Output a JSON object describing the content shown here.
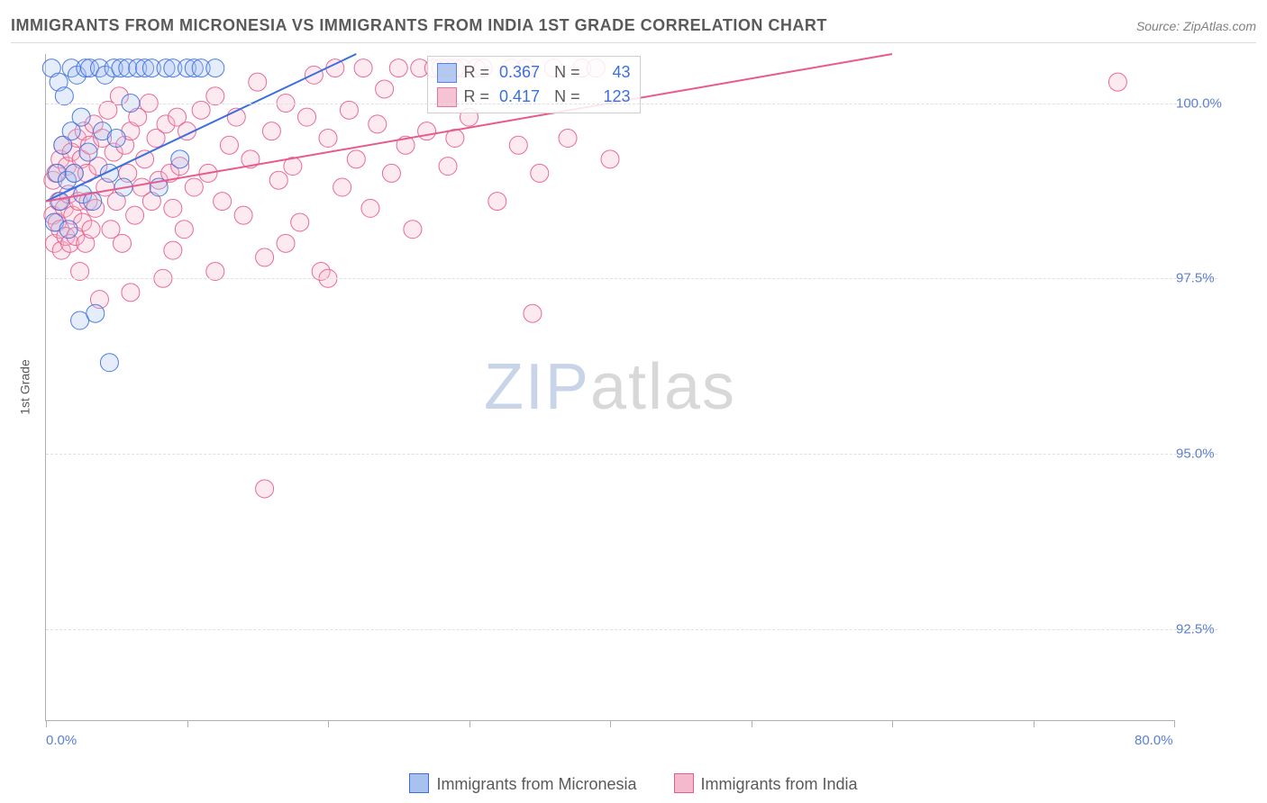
{
  "title": "IMMIGRANTS FROM MICRONESIA VS IMMIGRANTS FROM INDIA 1ST GRADE CORRELATION CHART",
  "source_label": "Source:",
  "source_name": "ZipAtlas.com",
  "ylabel": "1st Grade",
  "watermark_a": "ZIP",
  "watermark_b": "atlas",
  "chart": {
    "type": "scatter",
    "background_color": "#ffffff",
    "grid_color": "#e0e0e0",
    "axis_color": "#b0b0b0",
    "tick_label_color": "#5b7fd1",
    "xlim": [
      0,
      80
    ],
    "ylim": [
      91.2,
      100.7
    ],
    "x_ticks": [
      0,
      10,
      20,
      30,
      40,
      50,
      60,
      70,
      80
    ],
    "x_tick_labels_visible": {
      "0": "0.0%",
      "80": "80.0%"
    },
    "y_ticks": [
      92.5,
      95.0,
      97.5,
      100.0
    ],
    "y_tick_labels": {
      "92.5": "92.5%",
      "95.0": "95.0%",
      "97.5": "97.5%",
      "100.0": "100.0%"
    },
    "marker_radius": 10,
    "marker_fill_opacity": 0.3,
    "marker_stroke_opacity": 0.9,
    "line_width": 2,
    "series": [
      {
        "name": "Immigrants from Micronesia",
        "color": "#3b6fe0",
        "fill": "#a9c1ef",
        "R": "0.367",
        "N": "43",
        "trend": {
          "x0": 0,
          "y0": 98.6,
          "x1": 22,
          "y1": 100.7
        },
        "points": [
          [
            0.4,
            100.5
          ],
          [
            0.6,
            98.3
          ],
          [
            0.8,
            99.0
          ],
          [
            0.9,
            100.3
          ],
          [
            1.0,
            98.6
          ],
          [
            1.2,
            99.4
          ],
          [
            1.3,
            100.1
          ],
          [
            1.5,
            98.9
          ],
          [
            1.6,
            98.2
          ],
          [
            1.8,
            99.6
          ],
          [
            1.8,
            100.5
          ],
          [
            2.0,
            99.0
          ],
          [
            2.2,
            100.4
          ],
          [
            2.4,
            96.9
          ],
          [
            2.5,
            99.8
          ],
          [
            2.6,
            98.7
          ],
          [
            2.8,
            100.5
          ],
          [
            3.0,
            99.3
          ],
          [
            3.1,
            100.5
          ],
          [
            3.3,
            98.6
          ],
          [
            3.5,
            97.0
          ],
          [
            3.8,
            100.5
          ],
          [
            4.0,
            99.6
          ],
          [
            4.2,
            100.4
          ],
          [
            4.5,
            99.0
          ],
          [
            4.5,
            96.3
          ],
          [
            4.8,
            100.5
          ],
          [
            5.0,
            99.5
          ],
          [
            5.3,
            100.5
          ],
          [
            5.5,
            98.8
          ],
          [
            5.8,
            100.5
          ],
          [
            6.0,
            100.0
          ],
          [
            6.5,
            100.5
          ],
          [
            7.0,
            100.5
          ],
          [
            7.5,
            100.5
          ],
          [
            8.0,
            98.8
          ],
          [
            8.5,
            100.5
          ],
          [
            9.0,
            100.5
          ],
          [
            9.5,
            99.2
          ],
          [
            10.0,
            100.5
          ],
          [
            10.5,
            100.5
          ],
          [
            11.0,
            100.5
          ],
          [
            12.0,
            100.5
          ]
        ]
      },
      {
        "name": "Immigrants from India",
        "color": "#e85a8a",
        "fill": "#f5b9cd",
        "R": "0.417",
        "N": "123",
        "trend": {
          "x0": 0,
          "y0": 98.6,
          "x1": 60,
          "y1": 100.7
        },
        "points": [
          [
            0.5,
            98.4
          ],
          [
            0.5,
            98.9
          ],
          [
            0.6,
            98.0
          ],
          [
            0.7,
            99.0
          ],
          [
            0.8,
            98.3
          ],
          [
            0.9,
            98.6
          ],
          [
            1.0,
            99.2
          ],
          [
            1.0,
            98.2
          ],
          [
            1.1,
            97.9
          ],
          [
            1.2,
            99.4
          ],
          [
            1.3,
            98.5
          ],
          [
            1.4,
            98.1
          ],
          [
            1.5,
            99.1
          ],
          [
            1.6,
            98.7
          ],
          [
            1.7,
            98.0
          ],
          [
            1.8,
            99.3
          ],
          [
            1.9,
            98.4
          ],
          [
            2.0,
            99.0
          ],
          [
            2.1,
            98.1
          ],
          [
            2.2,
            99.5
          ],
          [
            2.3,
            98.6
          ],
          [
            2.4,
            97.6
          ],
          [
            2.5,
            99.2
          ],
          [
            2.6,
            98.3
          ],
          [
            2.7,
            99.6
          ],
          [
            2.8,
            98.0
          ],
          [
            2.9,
            99.0
          ],
          [
            3.0,
            98.6
          ],
          [
            3.1,
            99.4
          ],
          [
            3.2,
            98.2
          ],
          [
            3.4,
            99.7
          ],
          [
            3.5,
            98.5
          ],
          [
            3.7,
            99.1
          ],
          [
            3.8,
            97.2
          ],
          [
            4.0,
            99.5
          ],
          [
            4.2,
            98.8
          ],
          [
            4.4,
            99.9
          ],
          [
            4.6,
            98.2
          ],
          [
            4.8,
            99.3
          ],
          [
            5.0,
            98.6
          ],
          [
            5.2,
            100.1
          ],
          [
            5.4,
            98.0
          ],
          [
            5.6,
            99.4
          ],
          [
            5.8,
            99.0
          ],
          [
            6.0,
            99.6
          ],
          [
            6.3,
            98.4
          ],
          [
            6.5,
            99.8
          ],
          [
            6.8,
            98.8
          ],
          [
            7.0,
            99.2
          ],
          [
            7.3,
            100.0
          ],
          [
            7.5,
            98.6
          ],
          [
            7.8,
            99.5
          ],
          [
            8.0,
            98.9
          ],
          [
            8.3,
            97.5
          ],
          [
            8.5,
            99.7
          ],
          [
            8.8,
            99.0
          ],
          [
            9.0,
            98.5
          ],
          [
            9.3,
            99.8
          ],
          [
            9.5,
            99.1
          ],
          [
            9.8,
            98.2
          ],
          [
            10.0,
            99.6
          ],
          [
            10.5,
            98.8
          ],
          [
            11.0,
            99.9
          ],
          [
            11.5,
            99.0
          ],
          [
            12.0,
            100.1
          ],
          [
            12.5,
            98.6
          ],
          [
            13.0,
            99.4
          ],
          [
            13.5,
            99.8
          ],
          [
            14.0,
            98.4
          ],
          [
            14.5,
            99.2
          ],
          [
            15.0,
            100.3
          ],
          [
            15.5,
            97.8
          ],
          [
            16.0,
            99.6
          ],
          [
            16.5,
            98.9
          ],
          [
            17.0,
            100.0
          ],
          [
            17.5,
            99.1
          ],
          [
            18.0,
            98.3
          ],
          [
            18.5,
            99.8
          ],
          [
            19.0,
            100.4
          ],
          [
            19.5,
            97.6
          ],
          [
            20.0,
            99.5
          ],
          [
            20.5,
            100.5
          ],
          [
            21.0,
            98.8
          ],
          [
            21.5,
            99.9
          ],
          [
            22.0,
            99.2
          ],
          [
            22.5,
            100.5
          ],
          [
            23.0,
            98.5
          ],
          [
            23.5,
            99.7
          ],
          [
            24.0,
            100.2
          ],
          [
            24.5,
            99.0
          ],
          [
            25.0,
            100.5
          ],
          [
            25.5,
            99.4
          ],
          [
            26.0,
            98.2
          ],
          [
            26.5,
            100.5
          ],
          [
            27.0,
            99.6
          ],
          [
            27.5,
            100.5
          ],
          [
            28.0,
            100.5
          ],
          [
            28.5,
            99.1
          ],
          [
            29.0,
            100.5
          ],
          [
            29.5,
            100.5
          ],
          [
            30.0,
            99.8
          ],
          [
            30.5,
            100.5
          ],
          [
            31.0,
            100.5
          ],
          [
            32.0,
            98.6
          ],
          [
            33.0,
            100.5
          ],
          [
            33.5,
            99.4
          ],
          [
            34.0,
            100.5
          ],
          [
            35.0,
            99.0
          ],
          [
            36.0,
            100.5
          ],
          [
            37.0,
            99.5
          ],
          [
            38.0,
            100.5
          ],
          [
            39.0,
            100.5
          ],
          [
            40.0,
            99.2
          ],
          [
            76.0,
            100.3
          ],
          [
            15.5,
            94.5
          ],
          [
            34.5,
            97.0
          ],
          [
            20.0,
            97.5
          ],
          [
            17.0,
            98.0
          ],
          [
            29.0,
            99.5
          ],
          [
            28.5,
            100.5
          ],
          [
            12.0,
            97.6
          ],
          [
            6.0,
            97.3
          ],
          [
            9.0,
            97.9
          ]
        ]
      }
    ]
  },
  "legend": {
    "series1_label": "Immigrants from Micronesia",
    "series2_label": "Immigrants from India"
  }
}
